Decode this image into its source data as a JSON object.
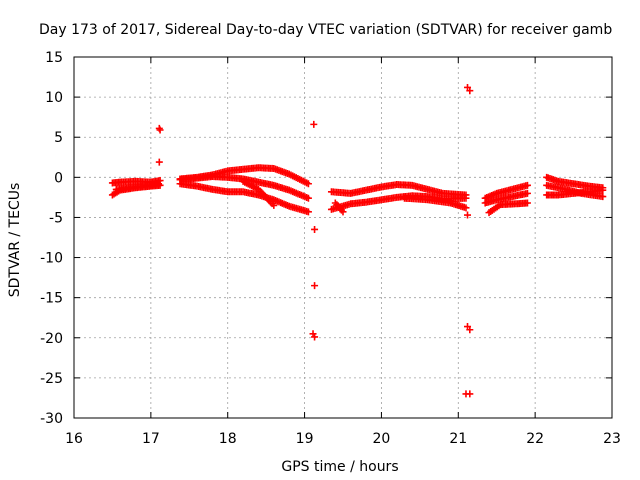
{
  "chart_data": {
    "type": "scatter",
    "title": "Day 173 of 2017, Sidereal Day-to-day VTEC variation (SDTVAR) for receiver gamb",
    "xlabel": "GPS time / hours",
    "ylabel": "SDTVAR / TECUs",
    "xlim": [
      16,
      23
    ],
    "ylim": [
      -30,
      15
    ],
    "xticks": [
      "16",
      "17",
      "18",
      "19",
      "20",
      "21",
      "22",
      "23"
    ],
    "yticks": [
      "-30",
      "-25",
      "-20",
      "-15",
      "-10",
      "-5",
      "0",
      "5",
      "10",
      "15"
    ],
    "grid": true,
    "marker_color": "#ff0000",
    "segments": [
      {
        "name": "arc-a1",
        "x": [
          16.5,
          16.6,
          16.8,
          17.0,
          17.12
        ],
        "y": [
          -0.7,
          -0.6,
          -0.5,
          -0.6,
          -0.4
        ]
      },
      {
        "name": "arc-a2",
        "x": [
          16.5,
          16.6,
          16.8,
          17.0,
          17.12
        ],
        "y": [
          -2.2,
          -1.6,
          -1.3,
          -1.1,
          -1.0
        ]
      },
      {
        "name": "arc-a3",
        "x": [
          16.55,
          16.8,
          17.0,
          17.1
        ],
        "y": [
          -1.5,
          -1.2,
          -1.0,
          -0.8
        ]
      },
      {
        "name": "arc-b1",
        "x": [
          17.38,
          17.6,
          17.8,
          18.0,
          18.2,
          18.4,
          18.6,
          18.8,
          19.05
        ],
        "y": [
          -0.2,
          0.0,
          0.3,
          0.8,
          1.0,
          1.2,
          1.1,
          0.4,
          -0.8
        ]
      },
      {
        "name": "arc-b2",
        "x": [
          17.38,
          17.6,
          17.8,
          18.0,
          18.2,
          18.4,
          18.6,
          18.8,
          19.05
        ],
        "y": [
          -0.3,
          -0.1,
          0.1,
          0.0,
          -0.2,
          -0.6,
          -1.0,
          -1.6,
          -2.6
        ]
      },
      {
        "name": "arc-b3",
        "x": [
          17.38,
          17.6,
          17.8,
          18.0,
          18.2,
          18.4,
          18.6,
          18.8,
          19.05
        ],
        "y": [
          -0.8,
          -1.1,
          -1.5,
          -1.8,
          -1.8,
          -2.2,
          -2.8,
          -3.6,
          -4.3
        ]
      },
      {
        "name": "arc-b4",
        "x": [
          18.2,
          18.4,
          18.6
        ],
        "y": [
          -0.5,
          -1.5,
          -3.5
        ]
      },
      {
        "name": "arc-c1",
        "x": [
          19.35,
          19.6,
          19.8,
          20.0,
          20.2,
          20.4,
          20.6,
          20.8,
          21.1
        ],
        "y": [
          -1.8,
          -2.0,
          -1.6,
          -1.2,
          -0.9,
          -1.0,
          -1.5,
          -2.0,
          -2.2
        ]
      },
      {
        "name": "arc-c2",
        "x": [
          19.35,
          19.6,
          19.8,
          20.0,
          20.2,
          20.4,
          20.6,
          20.8,
          21.1
        ],
        "y": [
          -4.0,
          -3.3,
          -3.1,
          -2.8,
          -2.5,
          -2.3,
          -2.4,
          -2.7,
          -2.6
        ]
      },
      {
        "name": "arc-c3",
        "x": [
          19.4,
          19.5
        ],
        "y": [
          -3.2,
          -4.3
        ]
      },
      {
        "name": "arc-c4",
        "x": [
          20.3,
          20.6,
          20.9,
          21.1
        ],
        "y": [
          -2.6,
          -2.8,
          -3.2,
          -3.8
        ]
      },
      {
        "name": "arc-d1",
        "x": [
          21.35,
          21.5,
          21.7,
          21.9
        ],
        "y": [
          -2.6,
          -2.0,
          -1.5,
          -1.0
        ]
      },
      {
        "name": "arc-d2",
        "x": [
          21.35,
          21.5,
          21.7,
          21.9
        ],
        "y": [
          -3.2,
          -2.8,
          -2.4,
          -2.0
        ]
      },
      {
        "name": "arc-d3",
        "x": [
          21.4,
          21.55,
          21.75,
          21.9
        ],
        "y": [
          -4.4,
          -3.4,
          -3.3,
          -3.2
        ]
      },
      {
        "name": "arc-e1",
        "x": [
          22.15,
          22.3,
          22.5,
          22.7,
          22.88
        ],
        "y": [
          0.0,
          -0.5,
          -0.8,
          -1.1,
          -1.3
        ]
      },
      {
        "name": "arc-e2",
        "x": [
          22.15,
          22.3,
          22.5,
          22.7,
          22.88
        ],
        "y": [
          -2.2,
          -2.2,
          -2.0,
          -1.8,
          -1.6
        ]
      },
      {
        "name": "arc-e3",
        "x": [
          22.15,
          22.4,
          22.6,
          22.88
        ],
        "y": [
          -1.0,
          -1.5,
          -2.0,
          -2.4
        ]
      }
    ],
    "outliers": [
      {
        "x": 17.11,
        "y": 6.1
      },
      {
        "x": 17.12,
        "y": 5.9
      },
      {
        "x": 17.11,
        "y": 1.9
      },
      {
        "x": 19.12,
        "y": 6.6
      },
      {
        "x": 19.13,
        "y": -6.5
      },
      {
        "x": 19.13,
        "y": -13.5
      },
      {
        "x": 19.11,
        "y": -19.5
      },
      {
        "x": 19.13,
        "y": -19.9
      },
      {
        "x": 21.12,
        "y": 11.2
      },
      {
        "x": 21.15,
        "y": 10.8
      },
      {
        "x": 21.12,
        "y": -4.7
      },
      {
        "x": 21.12,
        "y": -18.6
      },
      {
        "x": 21.15,
        "y": -19.0
      },
      {
        "x": 21.1,
        "y": -27.0
      },
      {
        "x": 21.15,
        "y": -27.0
      }
    ]
  }
}
